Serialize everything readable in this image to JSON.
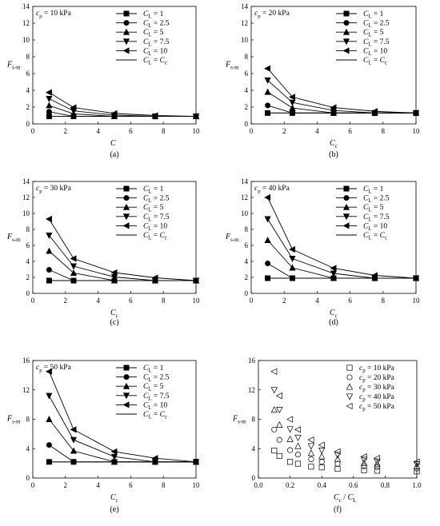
{
  "figure": {
    "panels": [
      {
        "tag": "(a)",
        "annotation": {
          "base": "c",
          "sub": "p",
          "rest": " = 10 kPa"
        },
        "ylabel": {
          "base": "F",
          "sub": "s-m"
        },
        "xlabel": {
          "base": "C",
          "sub": ""
        }
      },
      {
        "tag": "(b)",
        "annotation": {
          "base": "c",
          "sub": "p",
          "rest": " = 20 kPa"
        },
        "ylabel": {
          "base": "F",
          "sub": "s-m"
        },
        "xlabel": {
          "base": "C",
          "sub": "c"
        }
      },
      {
        "tag": "(c)",
        "annotation": {
          "base": "c",
          "sub": "p",
          "rest": " = 30 kPa"
        },
        "ylabel": {
          "base": "F",
          "sub": "s-m"
        },
        "xlabel": {
          "base": "C",
          "sub": "c"
        }
      },
      {
        "tag": "(d)",
        "annotation": {
          "base": "c",
          "sub": "p",
          "rest": " = 40 kPa"
        },
        "ylabel": {
          "base": "F",
          "sub": "s-m"
        },
        "xlabel": {
          "base": "C",
          "sub": "c"
        }
      },
      {
        "tag": "(e)",
        "annotation": {
          "base": "c",
          "sub": "p",
          "rest": " = 50 kPa"
        },
        "ylabel": {
          "base": "F",
          "sub": "s-m"
        },
        "xlabel": {
          "base": "C",
          "sub": "c"
        }
      },
      {
        "tag": "(f)",
        "annotation": null,
        "ylabel": {
          "base": "F",
          "sub": "s-m"
        },
        "xlabel": {
          "base": "C",
          "sub": "c",
          "rest": " / C",
          "sub2": "L"
        }
      }
    ]
  },
  "chart_data": [
    {
      "type": "line",
      "xlim": [
        0,
        10
      ],
      "ylim": [
        0,
        14
      ],
      "xticks": [
        0,
        2,
        4,
        6,
        8,
        10
      ],
      "yticks": [
        0,
        2,
        4,
        6,
        8,
        10,
        12,
        14
      ],
      "legend_position": "top-right",
      "series": [
        {
          "name": "C_L = 1",
          "marker": "square",
          "x": [
            1,
            2.5,
            5,
            7.5,
            10
          ],
          "y": [
            0.9,
            0.9,
            0.9,
            0.9,
            0.9
          ]
        },
        {
          "name": "C_L = 2.5",
          "marker": "circle",
          "x": [
            1,
            2.5,
            5,
            7.5,
            10
          ],
          "y": [
            1.45,
            0.9,
            0.9,
            0.9,
            0.9
          ]
        },
        {
          "name": "C_L = 5",
          "marker": "triangle-up",
          "x": [
            1,
            2.5,
            5,
            7.5,
            10
          ],
          "y": [
            2.2,
            1.2,
            0.9,
            0.9,
            0.9
          ]
        },
        {
          "name": "C_L = 7.5",
          "marker": "triangle-down",
          "x": [
            1,
            2.5,
            5,
            7.5,
            10
          ],
          "y": [
            3.0,
            1.55,
            1.05,
            0.9,
            0.9
          ]
        },
        {
          "name": "C_L = 10",
          "marker": "triangle-left",
          "x": [
            1,
            2.5,
            5,
            7.5,
            10
          ],
          "y": [
            3.75,
            1.95,
            1.25,
            1.0,
            0.9
          ]
        },
        {
          "name": "C_L = C_c",
          "marker": "none",
          "x": [
            1,
            10
          ],
          "y": [
            0.9,
            0.9
          ]
        }
      ]
    },
    {
      "type": "line",
      "xlim": [
        0,
        10
      ],
      "ylim": [
        0,
        14
      ],
      "xticks": [
        0,
        2,
        4,
        6,
        8,
        10
      ],
      "yticks": [
        0,
        2,
        4,
        6,
        8,
        10,
        12,
        14
      ],
      "legend_position": "top-right",
      "series": [
        {
          "name": "C_L = 1",
          "marker": "square",
          "x": [
            1,
            2.5,
            5,
            7.5,
            10
          ],
          "y": [
            1.3,
            1.3,
            1.3,
            1.3,
            1.3
          ]
        },
        {
          "name": "C_L = 2.5",
          "marker": "circle",
          "x": [
            1,
            2.5,
            5,
            7.5,
            10
          ],
          "y": [
            2.2,
            1.3,
            1.3,
            1.3,
            1.3
          ]
        },
        {
          "name": "C_L = 5",
          "marker": "triangle-up",
          "x": [
            1,
            2.5,
            5,
            7.5,
            10
          ],
          "y": [
            3.8,
            1.9,
            1.3,
            1.3,
            1.3
          ]
        },
        {
          "name": "C_L = 7.5",
          "marker": "triangle-down",
          "x": [
            1,
            2.5,
            5,
            7.5,
            10
          ],
          "y": [
            5.2,
            2.55,
            1.6,
            1.3,
            1.3
          ]
        },
        {
          "name": "C_L = 10",
          "marker": "triangle-left",
          "x": [
            1,
            2.5,
            5,
            7.5,
            10
          ],
          "y": [
            6.6,
            3.2,
            1.95,
            1.5,
            1.3
          ]
        },
        {
          "name": "C_L = C_c",
          "marker": "none",
          "x": [
            1,
            10
          ],
          "y": [
            1.3,
            1.3
          ]
        }
      ]
    },
    {
      "type": "line",
      "xlim": [
        0,
        10
      ],
      "ylim": [
        0,
        14
      ],
      "xticks": [
        0,
        2,
        4,
        6,
        8,
        10
      ],
      "yticks": [
        0,
        2,
        4,
        6,
        8,
        10,
        12,
        14
      ],
      "legend_position": "top-right",
      "series": [
        {
          "name": "C_L = 1",
          "marker": "square",
          "x": [
            1,
            2.5,
            5,
            7.5,
            10
          ],
          "y": [
            1.6,
            1.6,
            1.6,
            1.6,
            1.6
          ]
        },
        {
          "name": "C_L = 2.5",
          "marker": "circle",
          "x": [
            1,
            2.5,
            5,
            7.5,
            10
          ],
          "y": [
            2.95,
            1.6,
            1.6,
            1.6,
            1.6
          ]
        },
        {
          "name": "C_L = 5",
          "marker": "triangle-up",
          "x": [
            1,
            2.5,
            5,
            7.5,
            10
          ],
          "y": [
            5.3,
            2.55,
            1.6,
            1.6,
            1.6
          ]
        },
        {
          "name": "C_L = 7.5",
          "marker": "triangle-down",
          "x": [
            1,
            2.5,
            5,
            7.5,
            10
          ],
          "y": [
            7.25,
            3.4,
            2.05,
            1.6,
            1.6
          ]
        },
        {
          "name": "C_L = 10",
          "marker": "triangle-left",
          "x": [
            1,
            2.5,
            5,
            7.5,
            10
          ],
          "y": [
            9.3,
            4.35,
            2.6,
            1.95,
            1.6
          ]
        },
        {
          "name": "C_L = C_c",
          "marker": "none",
          "x": [
            1,
            10
          ],
          "y": [
            1.6,
            1.6
          ]
        }
      ]
    },
    {
      "type": "line",
      "xlim": [
        0,
        10
      ],
      "ylim": [
        0,
        14
      ],
      "xticks": [
        0,
        2,
        4,
        6,
        8,
        10
      ],
      "yticks": [
        0,
        2,
        4,
        6,
        8,
        10,
        12,
        14
      ],
      "legend_position": "top-right",
      "series": [
        {
          "name": "C_L = 1",
          "marker": "square",
          "x": [
            1,
            2.5,
            5,
            7.5,
            10
          ],
          "y": [
            1.9,
            1.9,
            1.9,
            1.9,
            1.9
          ]
        },
        {
          "name": "C_L = 2.5",
          "marker": "circle",
          "x": [
            1,
            2.5,
            5,
            7.5,
            10
          ],
          "y": [
            3.75,
            1.9,
            1.9,
            1.9,
            1.9
          ]
        },
        {
          "name": "C_L = 5",
          "marker": "triangle-up",
          "x": [
            1,
            2.5,
            5,
            7.5,
            10
          ],
          "y": [
            6.65,
            3.2,
            1.9,
            1.9,
            1.9
          ]
        },
        {
          "name": "C_L = 7.5",
          "marker": "triangle-down",
          "x": [
            1,
            2.5,
            5,
            7.5,
            10
          ],
          "y": [
            9.3,
            4.35,
            2.5,
            1.9,
            1.9
          ]
        },
        {
          "name": "C_L = 10",
          "marker": "triangle-left",
          "x": [
            1,
            2.5,
            5,
            7.5,
            10
          ],
          "y": [
            12.0,
            5.5,
            3.15,
            2.25,
            1.9
          ]
        },
        {
          "name": "C_L = C_c",
          "marker": "none",
          "x": [
            1,
            10
          ],
          "y": [
            1.9,
            1.9
          ]
        }
      ]
    },
    {
      "type": "line",
      "xlim": [
        0,
        10
      ],
      "ylim": [
        0,
        16
      ],
      "xticks": [
        0,
        2,
        4,
        6,
        8,
        10
      ],
      "yticks": [
        0,
        4,
        8,
        12,
        16
      ],
      "legend_position": "top-right",
      "series": [
        {
          "name": "C_L = 1",
          "marker": "square",
          "x": [
            1,
            2.5,
            5,
            7.5,
            10
          ],
          "y": [
            2.2,
            2.2,
            2.2,
            2.2,
            2.2
          ]
        },
        {
          "name": "C_L = 2.5",
          "marker": "circle",
          "x": [
            1,
            2.5,
            5,
            7.5,
            10
          ],
          "y": [
            4.5,
            2.2,
            2.2,
            2.2,
            2.2
          ]
        },
        {
          "name": "C_L = 5",
          "marker": "triangle-up",
          "x": [
            1,
            2.5,
            5,
            7.5,
            10
          ],
          "y": [
            8.0,
            3.7,
            2.2,
            2.2,
            2.2
          ]
        },
        {
          "name": "C_L = 7.5",
          "marker": "triangle-down",
          "x": [
            1,
            2.5,
            5,
            7.5,
            10
          ],
          "y": [
            11.2,
            5.2,
            2.9,
            2.2,
            2.2
          ]
        },
        {
          "name": "C_L = 10",
          "marker": "triangle-left",
          "x": [
            1,
            2.5,
            5,
            7.5,
            10
          ],
          "y": [
            14.5,
            6.6,
            3.6,
            2.7,
            2.2
          ]
        },
        {
          "name": "C_L = C_c",
          "marker": "none",
          "x": [
            1,
            10
          ],
          "y": [
            2.2,
            2.2
          ]
        }
      ]
    },
    {
      "type": "scatter",
      "xlim": [
        0,
        1
      ],
      "ylim": [
        0,
        16
      ],
      "xticks": [
        0.0,
        0.2,
        0.4,
        0.6,
        0.8,
        1.0
      ],
      "yticks": [
        0,
        4,
        8,
        12,
        16
      ],
      "legend_position": "top-right",
      "series": [
        {
          "name": "c_p = 10 kPa",
          "marker": "square-open",
          "x": [
            0.1,
            0.133,
            0.2,
            0.25,
            0.333,
            0.4,
            0.5,
            0.667,
            0.75,
            1.0
          ],
          "y": [
            3.75,
            3.0,
            2.2,
            1.95,
            1.55,
            1.45,
            1.25,
            1.05,
            1.0,
            0.9
          ]
        },
        {
          "name": "c_p = 20 kPa",
          "marker": "circle-open",
          "x": [
            0.1,
            0.133,
            0.2,
            0.25,
            0.333,
            0.4,
            0.5,
            0.667,
            0.75,
            1.0
          ],
          "y": [
            6.6,
            5.2,
            3.8,
            3.2,
            2.55,
            2.2,
            1.95,
            1.6,
            1.5,
            1.3
          ]
        },
        {
          "name": "c_p = 30 kPa",
          "marker": "triangle-up-open",
          "x": [
            0.1,
            0.133,
            0.2,
            0.25,
            0.333,
            0.4,
            0.5,
            0.667,
            0.75,
            1.0
          ],
          "y": [
            9.3,
            7.25,
            5.3,
            4.35,
            3.4,
            2.95,
            2.6,
            2.05,
            1.95,
            1.6
          ]
        },
        {
          "name": "c_p = 40 kPa",
          "marker": "triangle-down-open",
          "x": [
            0.1,
            0.133,
            0.2,
            0.25,
            0.333,
            0.4,
            0.5,
            0.667,
            0.75,
            1.0
          ],
          "y": [
            12.0,
            9.3,
            6.65,
            5.5,
            4.35,
            3.75,
            3.15,
            2.5,
            2.25,
            1.9
          ]
        },
        {
          "name": "c_p = 50 kPa",
          "marker": "triangle-left-open",
          "x": [
            0.1,
            0.133,
            0.2,
            0.25,
            0.333,
            0.4,
            0.5,
            0.667,
            0.75,
            1.0
          ],
          "y": [
            14.5,
            11.2,
            8.0,
            6.6,
            5.2,
            4.5,
            3.6,
            2.9,
            2.7,
            2.2
          ]
        }
      ]
    }
  ]
}
